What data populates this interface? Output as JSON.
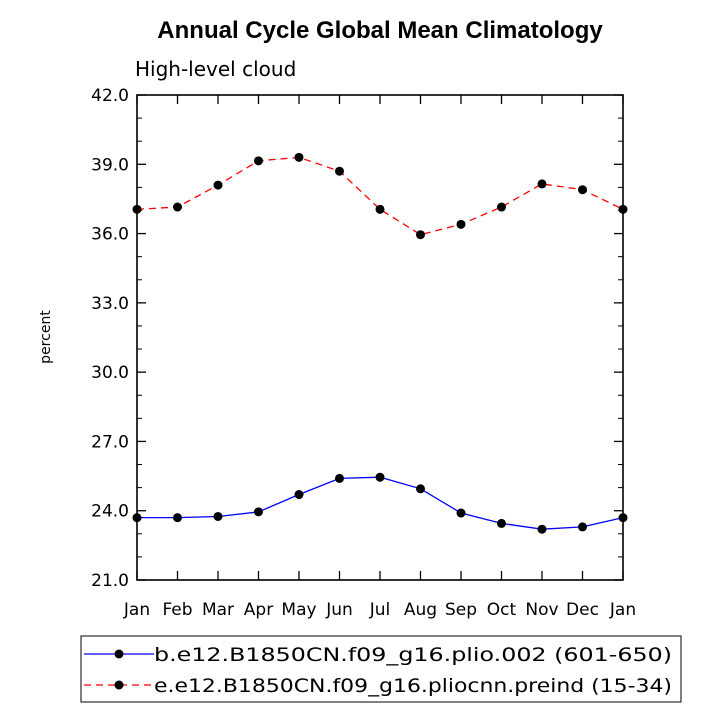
{
  "chart_data": {
    "type": "line",
    "title": "Annual Cycle Global Mean Climatology",
    "subtitle": "High-level cloud",
    "xlabel": "",
    "ylabel": "percent",
    "categories": [
      "Jan",
      "Feb",
      "Mar",
      "Apr",
      "May",
      "Jun",
      "Jul",
      "Aug",
      "Sep",
      "Oct",
      "Nov",
      "Dec",
      "Jan"
    ],
    "ylim": [
      21.0,
      42.0
    ],
    "yticks": [
      "21.0",
      "24.0",
      "27.0",
      "30.0",
      "33.0",
      "36.0",
      "39.0",
      "42.0"
    ],
    "series": [
      {
        "name": "b.e12.B1850CN.f09_g16.plio.002 (601-650)",
        "color": "#0000ff",
        "dash": "solid",
        "values": [
          23.7,
          23.7,
          23.75,
          23.95,
          24.7,
          25.4,
          25.45,
          24.95,
          23.9,
          23.45,
          23.2,
          23.3,
          23.7
        ]
      },
      {
        "name": "e.e12.B1850CN.f09_g16.pliocnn.preind (15-34)",
        "color": "#ff0000",
        "dash": "dashed",
        "values": [
          37.05,
          37.15,
          38.1,
          39.15,
          39.3,
          38.7,
          37.05,
          35.95,
          36.4,
          37.15,
          38.15,
          37.9,
          37.05
        ]
      }
    ],
    "legend_position": "bottom"
  }
}
